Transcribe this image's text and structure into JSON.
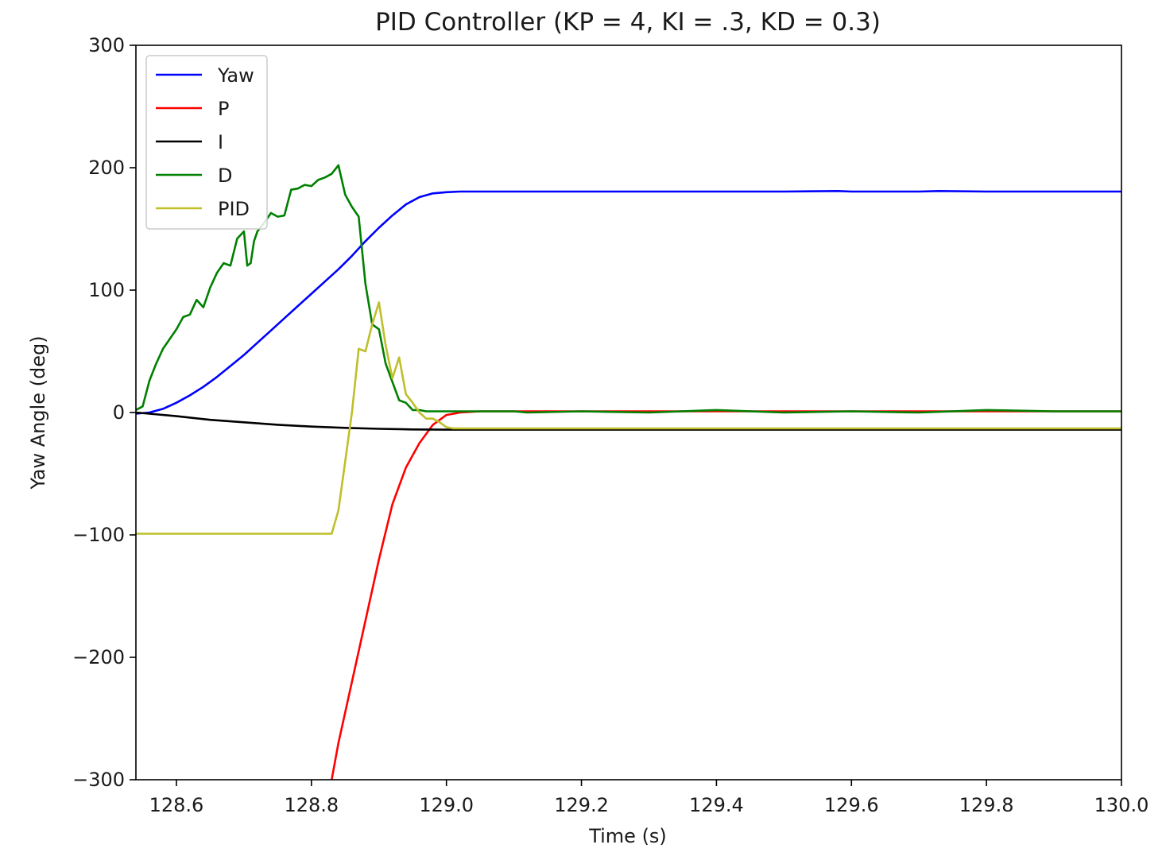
{
  "chart_data": {
    "type": "line",
    "title": "PID Controller (KP = 4, KI = .3, KD = 0.3)",
    "xlabel": "Time (s)",
    "ylabel": "Yaw Angle (deg)",
    "xlim": [
      128.54,
      130.0
    ],
    "ylim": [
      -300,
      300
    ],
    "x_ticks": [
      128.6,
      128.8,
      129.0,
      129.2,
      129.4,
      129.6,
      129.8,
      130.0
    ],
    "x_tick_labels": [
      "128.6",
      "128.8",
      "129.0",
      "129.2",
      "129.4",
      "129.6",
      "129.8",
      "130.0"
    ],
    "y_ticks": [
      300,
      200,
      100,
      0,
      -100,
      -200,
      -300
    ],
    "y_tick_labels": [
      "300",
      "200",
      "100",
      "0",
      "−100",
      "−200",
      "−300"
    ],
    "grid": false,
    "legend_position": "upper-left",
    "series": [
      {
        "name": "Yaw",
        "color": "#0000ff",
        "x": [
          128.54,
          128.56,
          128.58,
          128.6,
          128.62,
          128.64,
          128.66,
          128.68,
          128.7,
          128.72,
          128.74,
          128.76,
          128.78,
          128.8,
          128.82,
          128.84,
          128.86,
          128.88,
          128.9,
          128.92,
          128.94,
          128.96,
          128.98,
          129.0,
          129.02,
          129.05,
          129.1,
          129.2,
          129.3,
          129.4,
          129.5,
          129.58,
          129.6,
          129.7,
          129.73,
          129.8,
          129.9,
          130.0
        ],
        "y": [
          -1,
          0,
          3,
          8,
          14,
          21,
          29,
          38,
          47,
          57,
          67,
          77,
          87,
          97,
          107,
          117,
          128,
          140,
          151,
          161,
          170,
          176,
          179,
          180,
          180.5,
          180.5,
          180.5,
          180.5,
          180.5,
          180.5,
          180.5,
          181,
          180.5,
          180.5,
          181,
          180.5,
          180.5,
          180.5
        ]
      },
      {
        "name": "P",
        "color": "#ff0000",
        "x": [
          128.83,
          128.84,
          128.86,
          128.88,
          128.9,
          128.92,
          128.94,
          128.96,
          128.98,
          129.0,
          129.02,
          129.05,
          129.1,
          129.2,
          129.4,
          129.6,
          129.8,
          130.0
        ],
        "y": [
          -300,
          -270,
          -220,
          -170,
          -120,
          -75,
          -45,
          -25,
          -10,
          -2,
          0,
          1,
          1,
          1,
          1,
          1,
          1,
          1
        ]
      },
      {
        "name": "I",
        "color": "#000000",
        "x": [
          128.54,
          128.56,
          128.6,
          128.65,
          128.7,
          128.75,
          128.8,
          128.85,
          128.9,
          128.95,
          129.0,
          129.05,
          129.1,
          129.2,
          129.4,
          129.6,
          129.8,
          130.0
        ],
        "y": [
          0,
          -1,
          -3,
          -6,
          -8,
          -10,
          -11.5,
          -12.5,
          -13.3,
          -13.8,
          -14,
          -14,
          -14,
          -14,
          -14,
          -14,
          -14,
          -14
        ]
      },
      {
        "name": "D",
        "color": "#008000",
        "x": [
          128.54,
          128.55,
          128.56,
          128.57,
          128.58,
          128.59,
          128.6,
          128.61,
          128.62,
          128.63,
          128.64,
          128.65,
          128.66,
          128.67,
          128.68,
          128.69,
          128.7,
          128.705,
          128.71,
          128.715,
          128.72,
          128.73,
          128.74,
          128.75,
          128.76,
          128.77,
          128.78,
          128.79,
          128.8,
          128.81,
          128.82,
          128.83,
          128.84,
          128.85,
          128.86,
          128.87,
          128.88,
          128.89,
          128.9,
          128.91,
          128.92,
          128.93,
          128.94,
          128.95,
          128.96,
          128.97,
          128.98,
          128.99,
          129.0,
          129.02,
          129.04,
          129.06,
          129.1,
          129.12,
          129.2,
          129.3,
          129.4,
          129.5,
          129.6,
          129.7,
          129.8,
          129.9,
          130.0
        ],
        "y": [
          2,
          5,
          26,
          40,
          52,
          60,
          68,
          78,
          80,
          92,
          86,
          102,
          114,
          122,
          120,
          142,
          148,
          120,
          122,
          140,
          148,
          155,
          163,
          160,
          161,
          182,
          183,
          186,
          185,
          190,
          192,
          195,
          202,
          178,
          168,
          160,
          105,
          72,
          68,
          40,
          25,
          10,
          8,
          2,
          2,
          1,
          1,
          1,
          1,
          1,
          1,
          1,
          1,
          0,
          1,
          0,
          2,
          0,
          1,
          0,
          2,
          1,
          1
        ]
      },
      {
        "name": "PID",
        "color": "#bfbf2a",
        "x": [
          128.54,
          128.83,
          128.84,
          128.85,
          128.86,
          128.87,
          128.88,
          128.89,
          128.9,
          128.91,
          128.92,
          128.93,
          128.94,
          128.95,
          128.96,
          128.97,
          128.98,
          128.99,
          129.0,
          129.01,
          129.02,
          129.03,
          129.04,
          129.05,
          129.08,
          129.1,
          129.2,
          129.3,
          129.4,
          129.5,
          129.6,
          129.7,
          129.8,
          129.9,
          130.0
        ],
        "y": [
          -99,
          -99,
          -80,
          -40,
          0,
          52,
          50,
          72,
          90,
          55,
          28,
          45,
          15,
          8,
          0,
          -5,
          -5,
          -8,
          -12,
          -13,
          -13,
          -13,
          -13,
          -13,
          -13,
          -13,
          -13,
          -13,
          -13,
          -13,
          -13,
          -13,
          -13,
          -13,
          -13
        ]
      }
    ]
  }
}
